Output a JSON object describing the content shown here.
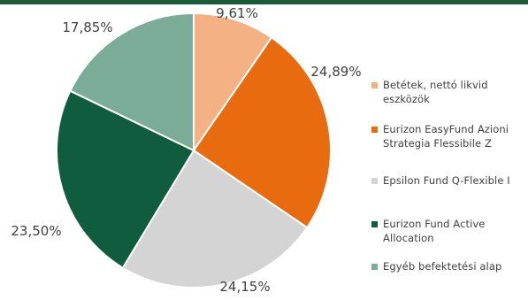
{
  "chart_data": {
    "type": "pie",
    "start_angle_deg": 0,
    "direction": "clockwise",
    "legend_position": "right",
    "slices": [
      {
        "label": "Betétek, nettó likvid eszközök",
        "value": 9.61,
        "value_label": "9,61%",
        "color": "#f4b183"
      },
      {
        "label": "Eurizon EasyFund Azioni Strategia Flessibile Z",
        "value": 24.89,
        "value_label": "24,89%",
        "color": "#e96b10"
      },
      {
        "label": "Epsilon Fund Q-Flexible I",
        "value": 24.15,
        "value_label": "24,15%",
        "color": "#d4d4d4"
      },
      {
        "label": "Eurizon Fund Active Allocation",
        "value": 23.5,
        "value_label": "23,50%",
        "color": "#0f5c3e"
      },
      {
        "label": "Egyéb befektetési alap",
        "value": 17.85,
        "value_label": "17,85%",
        "color": "#7aac98"
      }
    ]
  }
}
